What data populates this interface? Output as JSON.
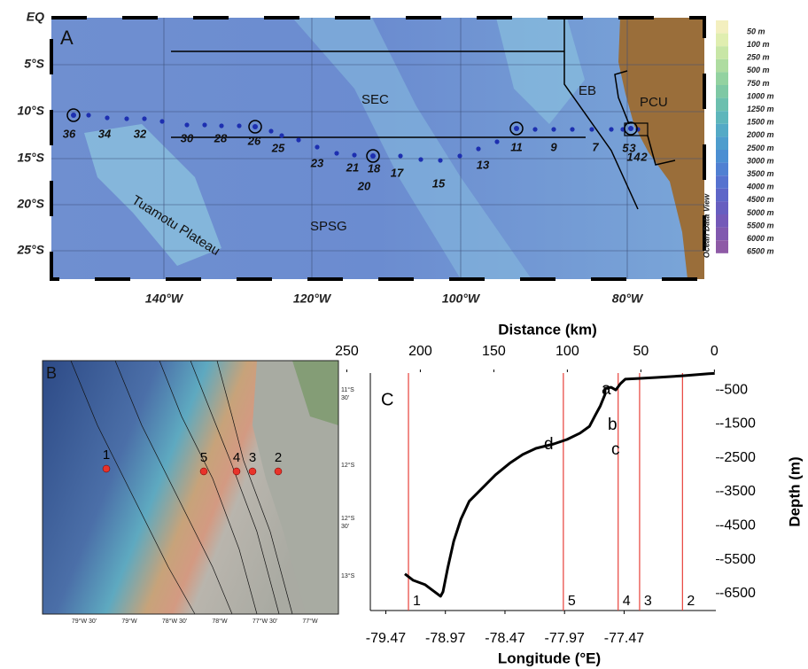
{
  "map_a": {
    "panel_label": "A",
    "lat_labels": [
      "EQ",
      "5°S",
      "10°S",
      "15°S",
      "20°S",
      "25°S"
    ],
    "lon_labels": [
      "140°W",
      "120°W",
      "100°W",
      "80°W"
    ],
    "region_labels": [
      "SEC",
      "EB",
      "PCU",
      "SPSG",
      "Tuamotu Plateau"
    ],
    "station_labels": [
      "36",
      "34",
      "32",
      "30",
      "28",
      "26",
      "25",
      "23",
      "21",
      "18",
      "20",
      "17",
      "15",
      "13",
      "11",
      "9",
      "7",
      "5",
      "3",
      "1",
      "4",
      "2"
    ],
    "legend": [
      "50 m",
      "100 m",
      "250 m",
      "500 m",
      "750 m",
      "1000 m",
      "1250 m",
      "1500 m",
      "2000 m",
      "2500 m",
      "3000 m",
      "3500 m",
      "4000 m",
      "4500 m",
      "5000 m",
      "5500 m",
      "6000 m",
      "6500 m"
    ],
    "credit": "Ocean Data View"
  },
  "map_b": {
    "panel_label": "B",
    "stations": [
      "1",
      "5",
      "4",
      "3",
      "2"
    ],
    "lat_labels": [
      [
        "11°S",
        "30'"
      ],
      [
        "12°S"
      ],
      [
        "12°S",
        "30'"
      ],
      [
        "13°S"
      ]
    ],
    "lon_labels": [
      "79°W 30'",
      "79°W",
      "78°W 30'",
      "78°W",
      "77°W 30'",
      "77°W"
    ]
  },
  "chart_data": {
    "type": "line",
    "panel_label": "C",
    "x_label": "Longitude (°E)",
    "x2_label": "Distance (km)",
    "y_label": "Depth (m)",
    "xlim": [
      -79.6,
      -76.7
    ],
    "xticks": [
      -79.47,
      -78.97,
      -78.47,
      -77.97,
      -77.47
    ],
    "x2lim": [
      234,
      -1
    ],
    "x2ticks": [
      250,
      200,
      150,
      100,
      50,
      0
    ],
    "ylim": [
      0,
      -7000
    ],
    "yticks": [
      -500,
      -1500,
      -2500,
      -3500,
      -4500,
      -5500,
      -6500
    ],
    "color": "#000000",
    "x": [
      -79.31,
      -79.24,
      -79.14,
      -79.06,
      -79.01,
      -78.99,
      -78.95,
      -78.9,
      -78.84,
      -78.77,
      -78.66,
      -78.55,
      -78.43,
      -78.32,
      -78.21,
      -78.06,
      -77.95,
      -77.84,
      -77.76,
      -77.71,
      -77.67,
      -77.63,
      -77.63,
      -77.58,
      -77.54,
      -77.5,
      -77.46,
      -77.35,
      -77.2,
      -76.98,
      -76.76,
      -76.71
    ],
    "values": [
      -5920,
      -6110,
      -6240,
      -6450,
      -6580,
      -6450,
      -5740,
      -4960,
      -4310,
      -3780,
      -3390,
      -3000,
      -2660,
      -2400,
      -2220,
      -2090,
      -1960,
      -1770,
      -1570,
      -1230,
      -970,
      -630,
      -450,
      -420,
      -500,
      -310,
      -180,
      -160,
      -130,
      -80,
      -20,
      -10
    ],
    "stations": {
      "labels": [
        "1",
        "5",
        "4",
        "3",
        "2"
      ],
      "x": [
        -79.28,
        -77.98,
        -77.52,
        -77.34,
        -76.98
      ],
      "color": "#e8413a"
    },
    "annotations": [
      "a",
      "b",
      "c",
      "d"
    ]
  }
}
